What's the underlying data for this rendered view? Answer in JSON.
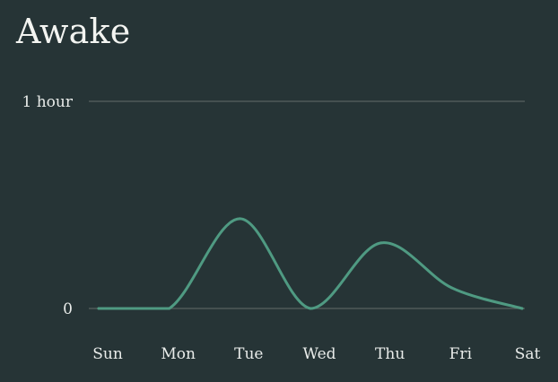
{
  "widget": {
    "title": "Awake"
  },
  "chart_data": {
    "type": "line",
    "title": "Awake",
    "xlabel": "",
    "ylabel": "",
    "categories": [
      "Sun",
      "Mon",
      "Tue",
      "Wed",
      "Thu",
      "Fri",
      "Sat"
    ],
    "yticks": [
      {
        "value": 0,
        "label": "0"
      },
      {
        "value": 60,
        "label": "1 hour"
      }
    ],
    "ylim": [
      0,
      60
    ],
    "unit": "minutes",
    "series": [
      {
        "values": [
          0,
          0,
          26,
          0,
          19,
          6,
          0
        ]
      }
    ],
    "grid": true,
    "line_color": "#4f9a82",
    "grid_color": "#58625f"
  }
}
